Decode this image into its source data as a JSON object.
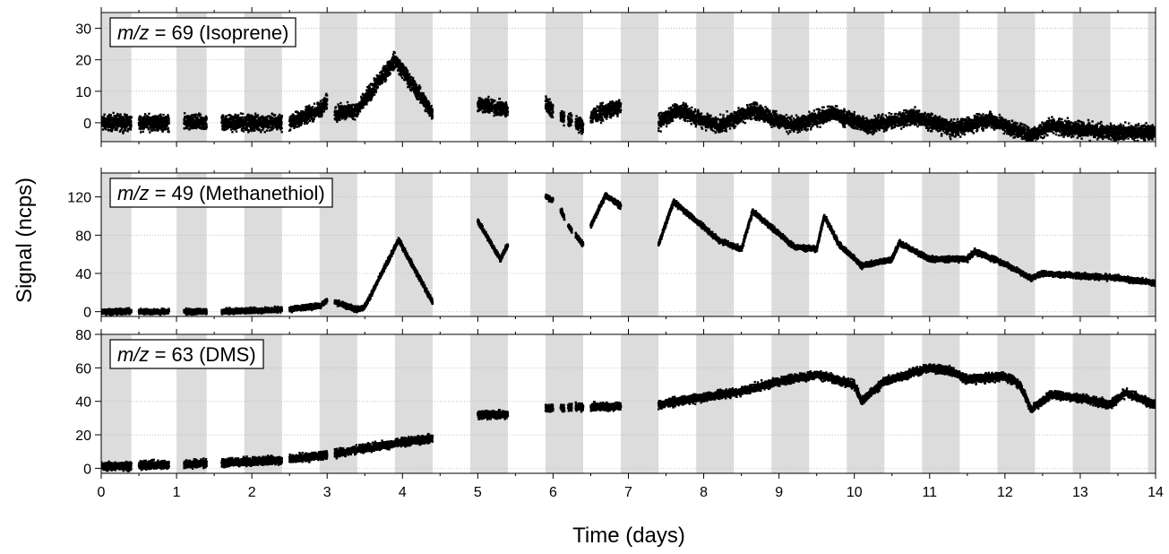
{
  "chart_data": {
    "type": "scatter",
    "xlabel": "Time (days)",
    "ylabel": "Signal (ncps)",
    "xlim": [
      0,
      14
    ],
    "x_ticks": [
      0,
      1,
      2,
      3,
      4,
      5,
      6,
      7,
      8,
      9,
      10,
      11,
      12,
      13,
      14
    ],
    "x_tick_labels": [
      "0",
      "1",
      "2",
      "3",
      "4",
      "5",
      "6",
      "7",
      "8",
      "9",
      "10",
      "11",
      "12",
      "13",
      "14"
    ],
    "night_shading": [
      [
        0,
        0.4
      ],
      [
        1,
        1.4
      ],
      [
        1.9,
        2.4
      ],
      [
        2.9,
        3.4
      ],
      [
        3.9,
        4.4
      ],
      [
        4.9,
        5.4
      ],
      [
        5.9,
        6.4
      ],
      [
        6.9,
        7.4
      ],
      [
        7.9,
        8.4
      ],
      [
        8.9,
        9.4
      ],
      [
        9.9,
        10.4
      ],
      [
        10.9,
        11.4
      ],
      [
        11.9,
        12.4
      ],
      [
        12.9,
        13.4
      ],
      [
        13.9,
        14
      ]
    ],
    "measurement_periods": [
      [
        0,
        0.4
      ],
      [
        0.5,
        0.9
      ],
      [
        1.1,
        1.4
      ],
      [
        1.6,
        2.4
      ],
      [
        2.5,
        3.0
      ],
      [
        3.1,
        4.4
      ],
      [
        5.0,
        5.4
      ],
      [
        5.9,
        6.0
      ],
      [
        6.1,
        6.15
      ],
      [
        6.2,
        6.25
      ],
      [
        6.3,
        6.4
      ],
      [
        6.5,
        6.9
      ],
      [
        7.4,
        14.0
      ]
    ],
    "grid": "horizontal dotted",
    "panels": [
      {
        "label_prefix": "m/z",
        "label_suffix": " = 69 (Isoprene)",
        "ylim": [
          -6,
          35
        ],
        "y_ticks": [
          0,
          10,
          20,
          30
        ],
        "y_tick_labels": [
          "0",
          "10",
          "20",
          "30"
        ],
        "spread": 3.5,
        "trend": [
          [
            0,
            0
          ],
          [
            2.5,
            0
          ],
          [
            2.9,
            4
          ],
          [
            3.05,
            8
          ],
          [
            3.1,
            3
          ],
          [
            3.4,
            4
          ],
          [
            3.9,
            20
          ],
          [
            4.4,
            3
          ],
          [
            5.0,
            6
          ],
          [
            5.4,
            4
          ],
          [
            5.9,
            6
          ],
          [
            6.05,
            3
          ],
          [
            6.2,
            1
          ],
          [
            6.4,
            -1
          ],
          [
            6.5,
            2
          ],
          [
            6.9,
            5
          ],
          [
            7.4,
            0
          ],
          [
            7.65,
            4
          ],
          [
            8.2,
            -1
          ],
          [
            8.65,
            4
          ],
          [
            9.2,
            -1
          ],
          [
            9.7,
            3
          ],
          [
            10.2,
            -1
          ],
          [
            10.8,
            2
          ],
          [
            11.3,
            -2
          ],
          [
            11.8,
            1
          ],
          [
            12.35,
            -4
          ],
          [
            12.6,
            -1
          ],
          [
            13.3,
            -3
          ],
          [
            14,
            -3
          ]
        ]
      },
      {
        "label_prefix": "m/z",
        "label_suffix": " = 49 (Methanethiol)",
        "ylim": [
          -5,
          145
        ],
        "y_ticks": [
          0,
          40,
          80,
          120
        ],
        "y_tick_labels": [
          "0",
          "40",
          "80",
          "120"
        ],
        "spread": 4,
        "trend": [
          [
            0,
            0
          ],
          [
            1.5,
            0
          ],
          [
            2.4,
            2
          ],
          [
            2.9,
            6
          ],
          [
            3.05,
            15
          ],
          [
            3.1,
            10
          ],
          [
            3.4,
            2
          ],
          [
            3.5,
            5
          ],
          [
            3.95,
            75
          ],
          [
            4.4,
            10
          ],
          [
            5.0,
            95
          ],
          [
            5.3,
            55
          ],
          [
            5.4,
            70
          ],
          [
            5.9,
            120
          ],
          [
            6.05,
            115
          ],
          [
            6.2,
            90
          ],
          [
            6.4,
            70
          ],
          [
            6.5,
            90
          ],
          [
            6.7,
            122
          ],
          [
            6.9,
            110
          ],
          [
            7.4,
            70
          ],
          [
            7.6,
            115
          ],
          [
            8.2,
            75
          ],
          [
            8.5,
            65
          ],
          [
            8.65,
            105
          ],
          [
            9.2,
            68
          ],
          [
            9.5,
            65
          ],
          [
            9.6,
            100
          ],
          [
            9.8,
            70
          ],
          [
            10.1,
            48
          ],
          [
            10.5,
            55
          ],
          [
            10.6,
            72
          ],
          [
            11.0,
            55
          ],
          [
            11.5,
            55
          ],
          [
            11.6,
            63
          ],
          [
            12.0,
            50
          ],
          [
            12.35,
            35
          ],
          [
            12.5,
            40
          ],
          [
            13.5,
            35
          ],
          [
            14.0,
            30
          ]
        ]
      },
      {
        "label_prefix": "m/z",
        "label_suffix": " = 63 (DMS)",
        "ylim": [
          -3,
          80
        ],
        "y_ticks": [
          0,
          20,
          40,
          60,
          80
        ],
        "y_tick_labels": [
          "0",
          "20",
          "40",
          "60",
          "80"
        ],
        "spread": 3.5,
        "trend": [
          [
            0,
            1
          ],
          [
            1.5,
            3
          ],
          [
            2.4,
            5
          ],
          [
            3.0,
            8
          ],
          [
            3.5,
            12
          ],
          [
            4.4,
            18
          ],
          [
            5.0,
            32
          ],
          [
            5.4,
            32
          ],
          [
            5.9,
            36
          ],
          [
            6.9,
            37
          ],
          [
            7.4,
            38
          ],
          [
            8.5,
            46
          ],
          [
            9.0,
            52
          ],
          [
            9.5,
            56
          ],
          [
            10.0,
            50
          ],
          [
            10.1,
            40
          ],
          [
            10.4,
            52
          ],
          [
            11.0,
            60
          ],
          [
            11.3,
            58
          ],
          [
            11.5,
            53
          ],
          [
            12.0,
            55
          ],
          [
            12.2,
            50
          ],
          [
            12.35,
            35
          ],
          [
            12.6,
            44
          ],
          [
            13.0,
            42
          ],
          [
            13.4,
            38
          ],
          [
            13.6,
            45
          ],
          [
            14.0,
            38
          ]
        ]
      }
    ]
  }
}
